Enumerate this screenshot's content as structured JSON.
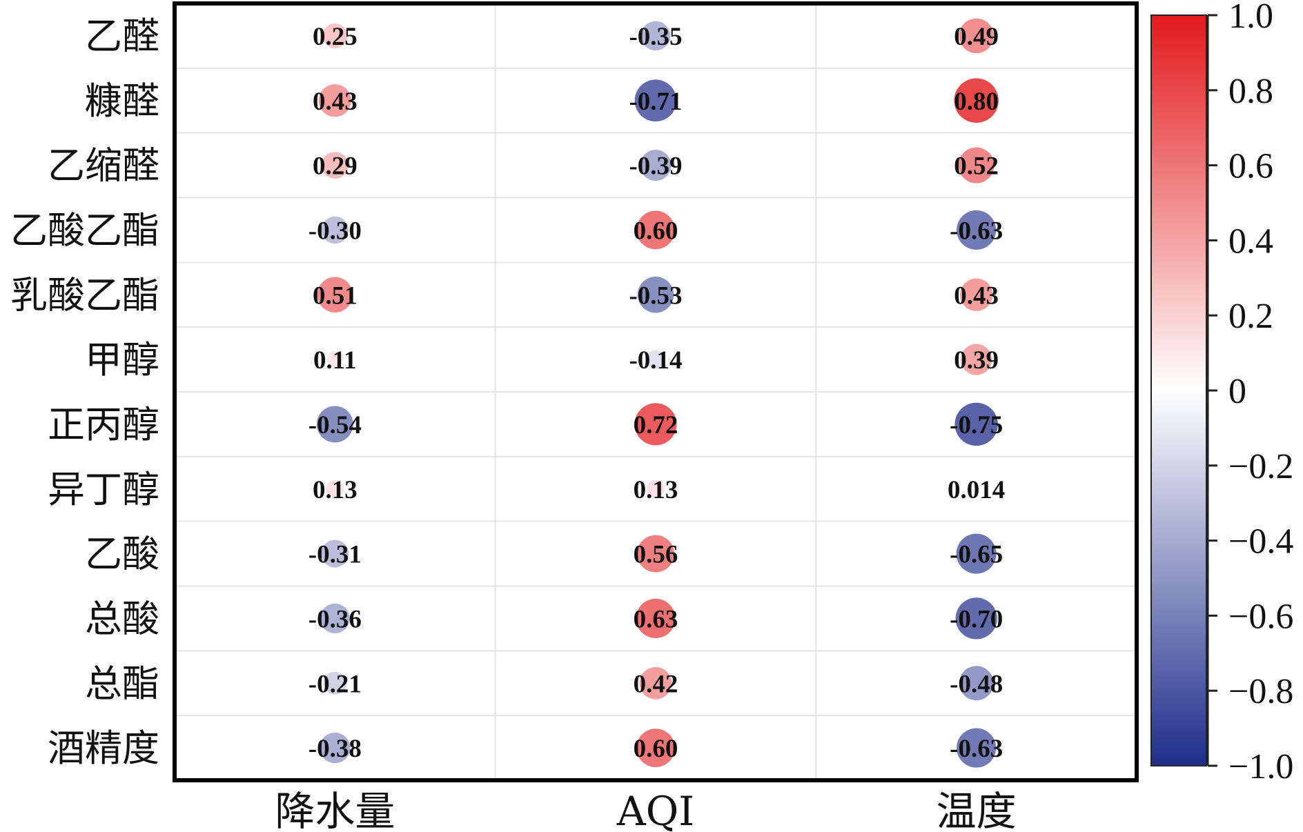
{
  "chart_data": {
    "type": "heatmap",
    "style": "circle-correlation-matrix",
    "rows": [
      "乙醛",
      "糠醛",
      "乙缩醛",
      "乙酸乙酯",
      "乳酸乙酯",
      "甲醇",
      "正丙醇",
      "异丁醇",
      "乙酸",
      "总酸",
      "总酯",
      "酒精度"
    ],
    "columns": [
      "降水量",
      "AQI",
      "温度"
    ],
    "values": [
      [
        0.25,
        -0.35,
        0.49
      ],
      [
        0.43,
        -0.71,
        0.8
      ],
      [
        0.29,
        -0.39,
        0.52
      ],
      [
        -0.3,
        0.6,
        -0.63
      ],
      [
        0.51,
        -0.53,
        0.43
      ],
      [
        0.11,
        -0.14,
        0.39
      ],
      [
        -0.54,
        0.72,
        -0.75
      ],
      [
        0.13,
        0.13,
        0.014
      ],
      [
        -0.31,
        0.56,
        -0.65
      ],
      [
        -0.36,
        0.63,
        -0.7
      ],
      [
        -0.21,
        0.42,
        -0.48
      ],
      [
        -0.38,
        0.6,
        -0.63
      ]
    ],
    "value_labels": [
      [
        "0.25",
        "-0.35",
        "0.49"
      ],
      [
        "0.43",
        "-0.71",
        "0.80"
      ],
      [
        "0.29",
        "-0.39",
        "0.52"
      ],
      [
        "-0.30",
        "0.60",
        "-0.63"
      ],
      [
        "0.51",
        "-0.53",
        "0.43"
      ],
      [
        "0.11",
        "-0.14",
        "0.39"
      ],
      [
        "-0.54",
        "0.72",
        "-0.75"
      ],
      [
        "0.13",
        "0.13",
        "0.014"
      ],
      [
        "-0.31",
        "0.56",
        "-0.65"
      ],
      [
        "-0.36",
        "0.63",
        "-0.70"
      ],
      [
        "-0.21",
        "0.42",
        "-0.48"
      ],
      [
        "-0.38",
        "0.60",
        "-0.63"
      ]
    ],
    "colorbar": {
      "range": [
        -1.0,
        1.0
      ],
      "ticks": [
        1.0,
        0.8,
        0.6,
        0.4,
        0.2,
        0,
        -0.2,
        -0.4,
        -0.6,
        -0.8,
        -1.0
      ],
      "tick_labels": [
        "1.0",
        "0.8",
        "0.6",
        "0.4",
        "0.2",
        "0",
        "−0.2",
        "−0.4",
        "−0.6",
        "−0.8",
        "−1.0"
      ],
      "colors": {
        "negative": "#1f2d8a",
        "zero": "#ffffff",
        "positive": "#e31a1c"
      }
    },
    "grid": true,
    "legend": "right",
    "title": "",
    "xlabel": "",
    "ylabel": ""
  }
}
